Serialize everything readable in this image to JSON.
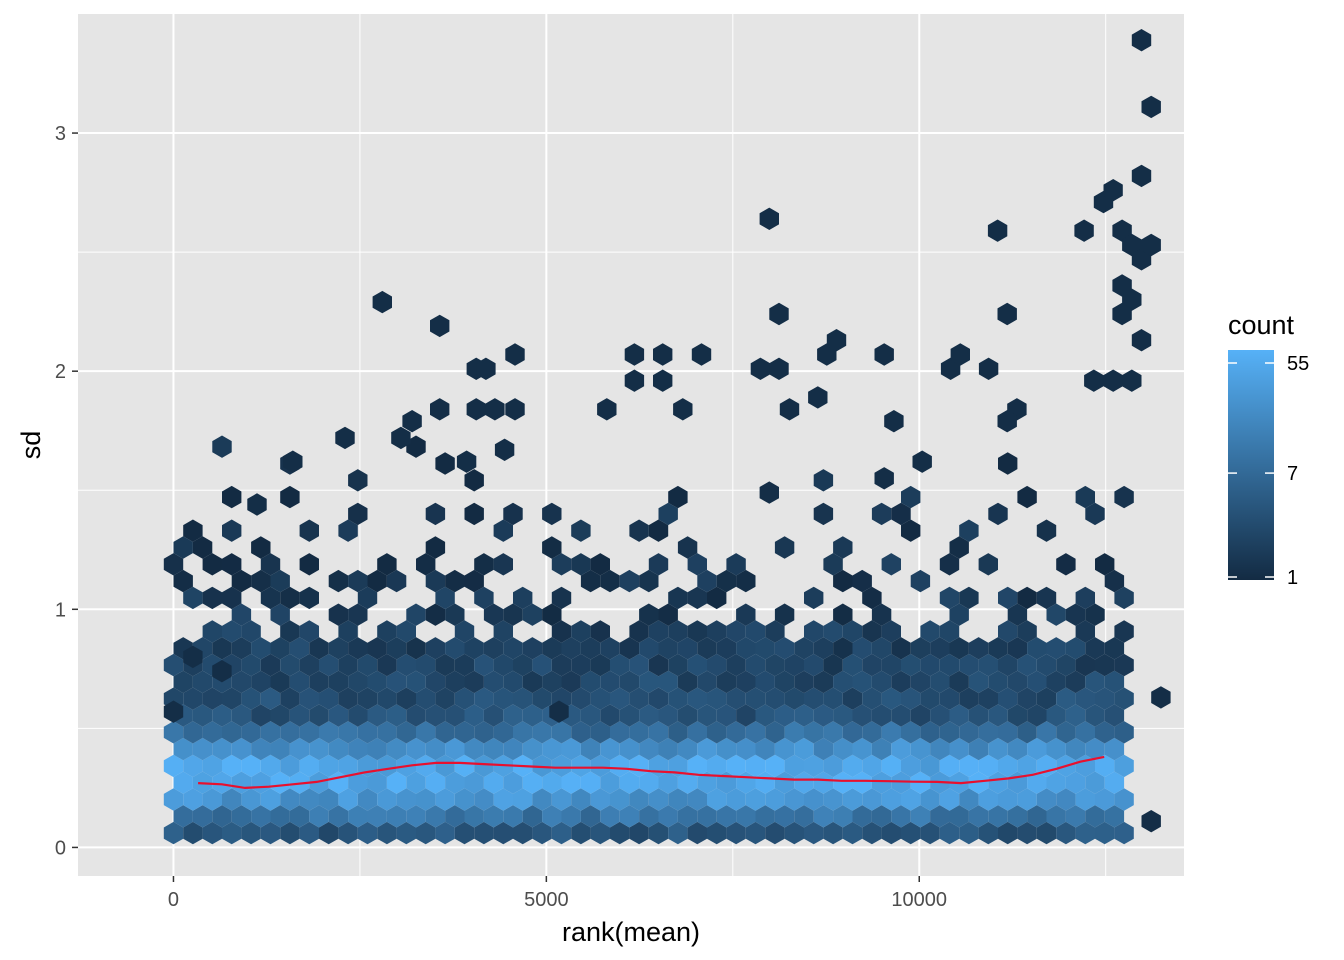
{
  "chart_data": {
    "type": "hexbin",
    "xlabel": "rank(mean)",
    "ylabel": "sd",
    "xlim": [
      -1280,
      13550
    ],
    "ylim": [
      -0.12,
      3.5
    ],
    "x_ticks": [
      0,
      5000,
      10000
    ],
    "x_tick_labels": [
      "0",
      "5000",
      "10000"
    ],
    "y_ticks": [
      0,
      1,
      2,
      3
    ],
    "y_tick_labels": [
      "0",
      "1",
      "2",
      "3"
    ],
    "x_minor_ticks": [
      2500,
      7500,
      12500
    ],
    "y_minor_ticks": [
      0.5,
      1.5,
      2.5
    ],
    "grid": true,
    "panel_background": "#e5e5e5",
    "grid_color": "#ffffff",
    "legend": {
      "title": "count",
      "position": "right",
      "scale": "log",
      "breaks": [
        1,
        7,
        55
      ],
      "break_labels": [
        "1",
        "7",
        "55"
      ],
      "low_color": "#132b43",
      "high_color": "#56b1f7"
    },
    "hex_dense_band": {
      "x_range": [
        0,
        12800
      ],
      "sd_center": 0.3,
      "sd_spread": 0.16
    },
    "outlier_hexes": [
      {
        "x": 1600,
        "y": 1.62
      },
      {
        "x": 1120,
        "y": 1.44
      },
      {
        "x": 2300,
        "y": 1.72
      },
      {
        "x": 2800,
        "y": 2.29
      },
      {
        "x": 3570,
        "y": 2.19
      },
      {
        "x": 3200,
        "y": 1.79
      },
      {
        "x": 3050,
        "y": 1.72
      },
      {
        "x": 3570,
        "y": 1.84
      },
      {
        "x": 3930,
        "y": 1.62
      },
      {
        "x": 4060,
        "y": 2.01
      },
      {
        "x": 4190,
        "y": 2.01
      },
      {
        "x": 4060,
        "y": 1.84
      },
      {
        "x": 4310,
        "y": 1.84
      },
      {
        "x": 4580,
        "y": 2.07
      },
      {
        "x": 4580,
        "y": 1.84
      },
      {
        "x": 4440,
        "y": 1.67
      },
      {
        "x": 6180,
        "y": 2.07
      },
      {
        "x": 6560,
        "y": 2.07
      },
      {
        "x": 6180,
        "y": 1.96
      },
      {
        "x": 6560,
        "y": 1.96
      },
      {
        "x": 5810,
        "y": 1.84
      },
      {
        "x": 6830,
        "y": 1.84
      },
      {
        "x": 7080,
        "y": 2.07
      },
      {
        "x": 7870,
        "y": 2.01
      },
      {
        "x": 8120,
        "y": 2.01
      },
      {
        "x": 7990,
        "y": 2.64
      },
      {
        "x": 8120,
        "y": 2.24
      },
      {
        "x": 8760,
        "y": 2.07
      },
      {
        "x": 8890,
        "y": 2.13
      },
      {
        "x": 9530,
        "y": 2.07
      },
      {
        "x": 8260,
        "y": 1.84
      },
      {
        "x": 8640,
        "y": 1.89
      },
      {
        "x": 9660,
        "y": 1.79
      },
      {
        "x": 10040,
        "y": 1.62
      },
      {
        "x": 10420,
        "y": 2.01
      },
      {
        "x": 10550,
        "y": 2.07
      },
      {
        "x": 10930,
        "y": 2.01
      },
      {
        "x": 11050,
        "y": 2.59
      },
      {
        "x": 11180,
        "y": 2.24
      },
      {
        "x": 12210,
        "y": 2.59
      },
      {
        "x": 12470,
        "y": 2.71
      },
      {
        "x": 12600,
        "y": 2.76
      },
      {
        "x": 12720,
        "y": 2.59
      },
      {
        "x": 12850,
        "y": 2.53
      },
      {
        "x": 12980,
        "y": 3.39
      },
      {
        "x": 13110,
        "y": 3.11
      },
      {
        "x": 12980,
        "y": 2.82
      },
      {
        "x": 12980,
        "y": 2.47
      },
      {
        "x": 13110,
        "y": 2.53
      },
      {
        "x": 12720,
        "y": 2.36
      },
      {
        "x": 12850,
        "y": 2.3
      },
      {
        "x": 12720,
        "y": 2.24
      },
      {
        "x": 12980,
        "y": 2.13
      },
      {
        "x": 12340,
        "y": 1.96
      },
      {
        "x": 12600,
        "y": 1.96
      },
      {
        "x": 12850,
        "y": 1.96
      },
      {
        "x": 11310,
        "y": 1.84
      },
      {
        "x": 11180,
        "y": 1.79
      },
      {
        "x": 9530,
        "y": 1.55
      },
      {
        "x": 7990,
        "y": 1.49
      },
      {
        "x": 13110,
        "y": 0.11
      },
      {
        "x": 13240,
        "y": 0.63
      },
      {
        "x": 5170,
        "y": 0.57
      },
      {
        "x": 260,
        "y": 0.8
      },
      {
        "x": 650,
        "y": 0.74
      },
      {
        "x": 0,
        "y": 0.57
      }
    ],
    "trend_line": {
      "color": "#e8102e",
      "x": [
        330,
        650,
        960,
        1280,
        1600,
        1920,
        2240,
        2560,
        2880,
        3200,
        3520,
        3840,
        4160,
        4480,
        4800,
        5120,
        5440,
        5760,
        6080,
        6400,
        6720,
        7040,
        7360,
        7680,
        8000,
        8320,
        8640,
        8960,
        9280,
        9600,
        9920,
        10240,
        10560,
        10880,
        11200,
        11520,
        11840,
        12160,
        12480
      ],
      "y": [
        0.27,
        0.265,
        0.25,
        0.255,
        0.265,
        0.275,
        0.295,
        0.315,
        0.33,
        0.345,
        0.355,
        0.355,
        0.35,
        0.345,
        0.34,
        0.335,
        0.335,
        0.335,
        0.33,
        0.32,
        0.315,
        0.305,
        0.3,
        0.295,
        0.29,
        0.285,
        0.285,
        0.28,
        0.28,
        0.278,
        0.276,
        0.275,
        0.27,
        0.28,
        0.29,
        0.305,
        0.33,
        0.36,
        0.38
      ]
    }
  }
}
